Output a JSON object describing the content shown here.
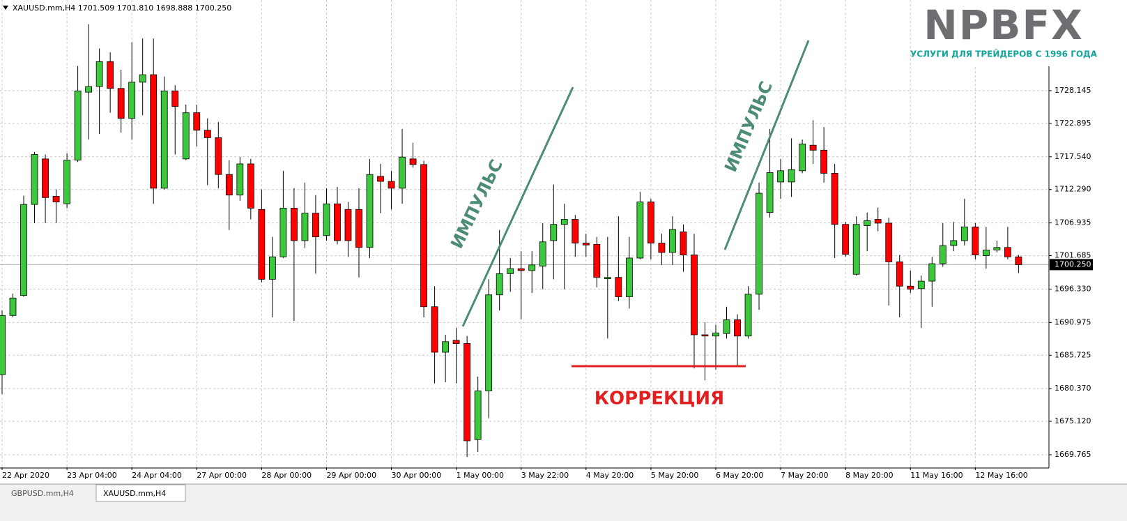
{
  "chart_data": {
    "type": "candlestick",
    "title": "XAUUSD.mm,H4  1701.509 1701.810 1698.888 1700.250",
    "logo": "NPBFX",
    "logo_tagline": "УСЛУГИ ДЛЯ ТРЕЙДЕРОВ С 1996 ГОДА",
    "annotations": [
      "ИМПУЛЬС",
      "ИМПУЛЬС",
      "КОРРЕКЦИЯ"
    ],
    "tabs": [
      "GBPUSD.mm,H4",
      "XAUUSD.mm,H4"
    ],
    "up_color": "#3cc83c",
    "down_color": "#ff0000",
    "grid": true,
    "categories": [
      "22 Apr 2020",
      null,
      null,
      null,
      null,
      null,
      "23 Apr 04:00",
      null,
      null,
      null,
      null,
      null,
      "24 Apr 04:00",
      null,
      null,
      null,
      null,
      null,
      "27 Apr 00:00",
      null,
      null,
      null,
      null,
      null,
      "28 Apr 00:00",
      null,
      null,
      null,
      null,
      null,
      "29 Apr 00:00",
      null,
      null,
      null,
      null,
      null,
      "30 Apr 00:00",
      null,
      null,
      null,
      null,
      null,
      "1 May 00:00",
      null,
      null,
      null,
      null,
      null,
      "3 May 22:00",
      null,
      null,
      null,
      null,
      null,
      "4 May 20:00",
      null,
      null,
      null,
      null,
      null,
      "5 May 20:00",
      null,
      null,
      null,
      null,
      null,
      "6 May 20:00",
      null,
      null,
      null,
      null,
      null,
      "7 May 20:00",
      null,
      null,
      null,
      null,
      null,
      "8 May 20:00",
      null,
      null,
      null,
      null,
      null,
      "11 May 16:00",
      null,
      null,
      null,
      null,
      null,
      "12 May 16:00",
      null,
      null,
      null,
      null
    ],
    "open": [
      1682.6,
      1692.1,
      1695.3,
      1709.9,
      1717.2,
      1711.2,
      1710.0,
      1717.0,
      1727.9,
      1728.8,
      1732.8,
      1728.5,
      1723.7,
      1729.5,
      1730.7,
      1712.5,
      1728.1,
      1717.2,
      1724.6,
      1721.8,
      1720.6,
      1714.7,
      1711.4,
      1716.4,
      1709.1,
      1697.9,
      1701.5,
      1709.3,
      1704.1,
      1708.5,
      1704.9,
      1710.0,
      1709.1,
      1709.1,
      1703.0,
      1714.4,
      1713.6,
      1712.5,
      1717.2,
      1716.3,
      1693.5,
      1686.2,
      1688.1,
      1687.6,
      1672.2,
      1680.0,
      1695.4,
      1698.8,
      1699.6,
      1699.3,
      1700.0,
      1704.1,
      1706.7,
      1707.5,
      1703.7,
      1703.5,
      1698.0,
      1698.2,
      1695.1,
      1701.3,
      1710.3,
      1703.7,
      1702.2,
      1705.5,
      1701.8,
      1689.0,
      1688.8,
      1689.2,
      1691.4,
      1688.8,
      1695.5,
      1708.6,
      1713.5,
      1713.5,
      1715.3,
      1719.4,
      1718.6,
      1714.9,
      1706.7,
      1698.7,
      1706.5,
      1707.5,
      1706.9,
      1700.7,
      1696.8,
      1696.4,
      1697.6,
      1700.4,
      1703.3,
      1704.1,
      1706.3,
      1701.7,
      1702.6,
      1703.0,
      1701.5
    ],
    "high": [
      1692.9,
      1695.6,
      1711.3,
      1718.3,
      1717.9,
      1712.3,
      1718.1,
      1732.1,
      1738.8,
      1734.9,
      1734.3,
      1731.5,
      1735.9,
      1736.5,
      1736.5,
      1730.4,
      1729.0,
      1725.9,
      1725.9,
      1723.7,
      1723.1,
      1717.0,
      1717.5,
      1717.2,
      1712.3,
      1704.7,
      1715.3,
      1712.5,
      1713.4,
      1711.4,
      1712.5,
      1712.7,
      1710.3,
      1712.5,
      1717.2,
      1716.4,
      1715.3,
      1722.0,
      1719.8,
      1716.9,
      1696.8,
      1689.0,
      1690.1,
      1688.8,
      1682.3,
      1697.9,
      1705.8,
      1701.3,
      1702.4,
      1702.4,
      1706.9,
      1713.1,
      1710.0,
      1708.2,
      1705.2,
      1704.7,
      1704.7,
      1708.0,
      1704.7,
      1711.9,
      1710.8,
      1705.2,
      1708.0,
      1706.7,
      1705.2,
      1691.0,
      1690.6,
      1693.5,
      1692.3,
      1696.8,
      1713.4,
      1722.0,
      1717.2,
      1720.5,
      1720.3,
      1723.4,
      1722.3,
      1716.4,
      1707.1,
      1708.0,
      1708.6,
      1709.4,
      1707.8,
      1701.8,
      1699.3,
      1698.5,
      1701.5,
      1706.9,
      1707.1,
      1710.8,
      1706.9,
      1706.3,
      1704.1,
      1706.3,
      1701.8
    ],
    "low": [
      1679.5,
      1691.8,
      1695.1,
      1706.9,
      1706.9,
      1706.9,
      1709.3,
      1716.7,
      1720.3,
      1721.2,
      1724.6,
      1721.4,
      1720.3,
      1724.2,
      1710.0,
      1712.3,
      1717.9,
      1717.0,
      1719.2,
      1713.0,
      1712.5,
      1705.8,
      1710.5,
      1707.5,
      1697.4,
      1691.8,
      1701.3,
      1691.2,
      1702.9,
      1698.8,
      1704.1,
      1703.5,
      1701.5,
      1698.2,
      1701.3,
      1708.5,
      1709.1,
      1710.0,
      1715.8,
      1691.8,
      1681.2,
      1681.4,
      1681.2,
      1669.4,
      1670.2,
      1675.6,
      1692.9,
      1695.9,
      1691.5,
      1695.7,
      1696.3,
      1697.9,
      1696.3,
      1701.5,
      1701.5,
      1696.6,
      1688.4,
      1694.4,
      1693.2,
      1701.1,
      1701.1,
      1700.2,
      1700.2,
      1699.1,
      1683.6,
      1681.7,
      1683.4,
      1688.4,
      1683.9,
      1688.4,
      1693.0,
      1707.8,
      1710.8,
      1711.1,
      1714.9,
      1716.4,
      1713.4,
      1701.3,
      1701.5,
      1698.5,
      1702.4,
      1705.6,
      1693.7,
      1691.8,
      1695.7,
      1690.1,
      1693.5,
      1699.9,
      1702.4,
      1703.3,
      1701.1,
      1699.6,
      1702.2,
      1701.1,
      1698.9
    ],
    "close": [
      1692.1,
      1694.9,
      1709.9,
      1717.9,
      1711.0,
      1710.3,
      1717.0,
      1728.1,
      1728.8,
      1732.8,
      1728.5,
      1723.7,
      1729.5,
      1730.7,
      1712.5,
      1728.1,
      1725.6,
      1724.6,
      1721.8,
      1720.6,
      1714.7,
      1711.4,
      1716.4,
      1709.3,
      1697.9,
      1701.5,
      1709.3,
      1704.1,
      1708.5,
      1704.7,
      1710.0,
      1704.1,
      1704.1,
      1703.0,
      1714.7,
      1713.6,
      1712.5,
      1717.5,
      1716.3,
      1693.5,
      1686.2,
      1687.9,
      1687.6,
      1672.0,
      1680.0,
      1695.4,
      1698.8,
      1699.6,
      1699.3,
      1700.2,
      1703.9,
      1706.7,
      1707.5,
      1703.7,
      1703.4,
      1698.2,
      1698.2,
      1695.1,
      1701.3,
      1710.3,
      1703.7,
      1702.2,
      1705.9,
      1701.8,
      1689.0,
      1688.8,
      1689.3,
      1691.4,
      1688.8,
      1695.5,
      1711.7,
      1715.0,
      1715.3,
      1715.5,
      1719.6,
      1718.6,
      1714.9,
      1706.7,
      1701.9,
      1706.7,
      1707.3,
      1706.9,
      1700.7,
      1696.8,
      1696.3,
      1697.6,
      1700.4,
      1703.3,
      1704.1,
      1706.3,
      1701.8,
      1702.6,
      1703.0,
      1701.5,
      1700.25
    ],
    "ylim": [
      1667.75,
      1742.68
    ],
    "yticks": [
      1728.145,
      1722.895,
      {
        "value": 1717.54,
        "label": "1717.540"
      },
      {
        "value": 1712.29,
        "label": "1712.290"
      },
      1706.935,
      1701.685,
      {
        "value": 1696.33,
        "label": "1696.330"
      },
      1690.975,
      1685.725,
      {
        "value": 1680.37,
        "label": "1680.370"
      },
      {
        "value": 1675.12,
        "label": "1675.120"
      },
      1669.765
    ],
    "last_price": {
      "value": 1700.25,
      "label": "1700.250"
    }
  }
}
